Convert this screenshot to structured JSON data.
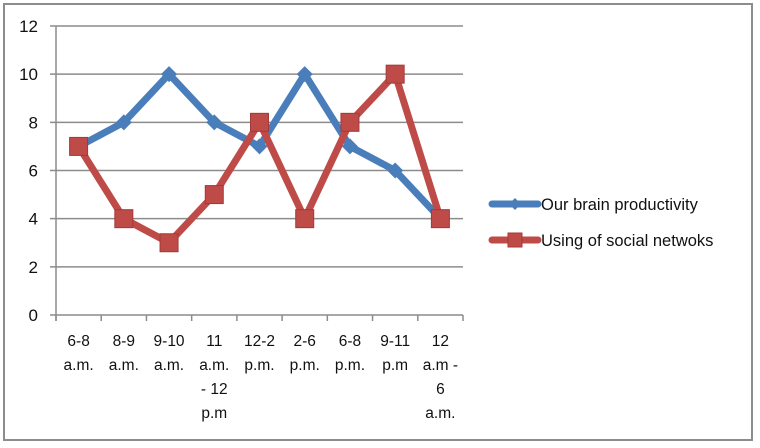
{
  "chart_data": {
    "type": "line",
    "title": "",
    "xlabel": "",
    "ylabel": "",
    "ylim": [
      0,
      12
    ],
    "yticks": [
      0,
      2,
      4,
      6,
      8,
      10,
      12
    ],
    "grid": true,
    "legend_position": "right",
    "categories": [
      [
        "6-8",
        "a.m."
      ],
      [
        "8-9",
        "a.m."
      ],
      [
        "9-10",
        "a.m."
      ],
      [
        "11",
        "a.m.",
        "- 12",
        "p.m"
      ],
      [
        "12-2",
        "p.m."
      ],
      [
        "2-6",
        "p.m."
      ],
      [
        "6-8",
        "p.m."
      ],
      [
        "9-11",
        "p.m"
      ],
      [
        "12",
        "a.m -",
        "6",
        "a.m."
      ]
    ],
    "series": [
      {
        "name": "Our brain productivity",
        "color": "#4a7ebb",
        "marker": "diamond",
        "values": [
          7,
          8,
          10,
          8,
          7,
          10,
          7,
          6,
          4
        ]
      },
      {
        "name": "Using of social netwoks",
        "color": "#be4b48",
        "marker": "square",
        "values": [
          7,
          4,
          3,
          5,
          8,
          4,
          8,
          10,
          4
        ]
      }
    ]
  },
  "colors": {
    "gridline": "#8c8c8c",
    "axis": "#8c8c8c",
    "frame": "#8c8c8c"
  }
}
